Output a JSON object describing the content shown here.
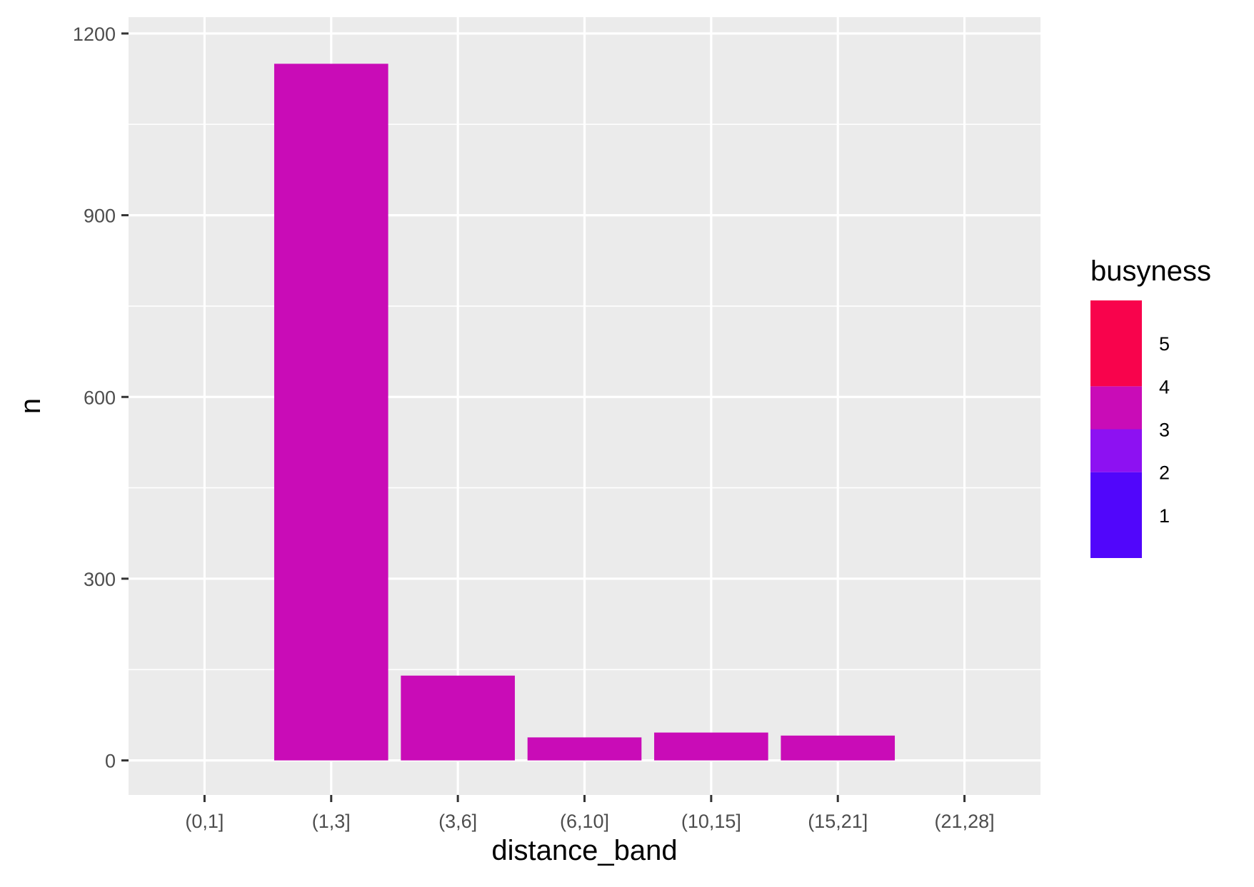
{
  "chart_data": {
    "type": "bar",
    "title": "",
    "xlabel": "distance_band",
    "ylabel": "n",
    "categories": [
      "(0,1]",
      "(1,3]",
      "(3,6]",
      "(6,10]",
      "(10,15]",
      "(15,21]",
      "(21,28]"
    ],
    "values": [
      0,
      1150,
      140,
      38,
      46,
      41,
      0
    ],
    "ylim": [
      -57,
      1227
    ],
    "yticks": [
      0,
      300,
      600,
      900,
      1200
    ],
    "y_minor_ticks": [
      150,
      450,
      750,
      1050
    ],
    "grid": true,
    "bar_color": "#c90cb7",
    "legend": {
      "title": "busyness",
      "placement": "right",
      "type": "colorbar",
      "range": [
        0,
        6
      ],
      "labels": [
        "5",
        "4",
        "3",
        "2",
        "1"
      ],
      "label_values": [
        5,
        4,
        3,
        2,
        1
      ],
      "bands": [
        {
          "from": 0,
          "to": 2,
          "color": "#5106fb"
        },
        {
          "from": 2,
          "to": 3,
          "color": "#8d11f2"
        },
        {
          "from": 3,
          "to": 4,
          "color": "#c90cb7"
        },
        {
          "from": 4,
          "to": 6,
          "color": "#f8034c"
        }
      ]
    },
    "panel_background": "#ebebeb",
    "grid_color": "#ffffff"
  }
}
